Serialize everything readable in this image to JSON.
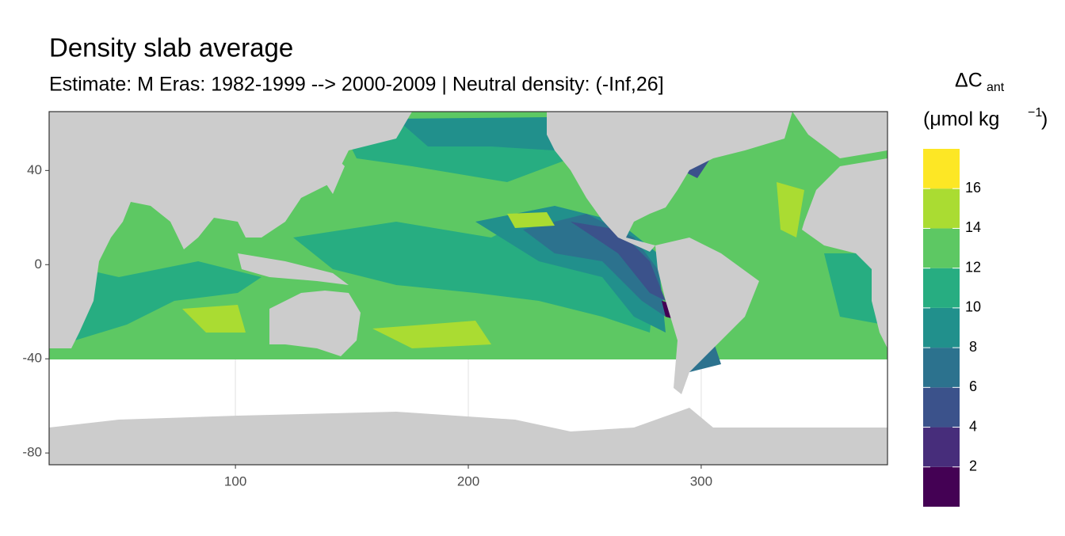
{
  "chart_data": {
    "type": "raster-map",
    "title": "Density slab average",
    "subtitle": "Estimate: M Eras: 1982-1999 --> 2000-2009 | Neutral density: (-Inf,26]",
    "xlim": [
      20,
      380
    ],
    "xticks": [
      100,
      200,
      300
    ],
    "ylim": [
      -85,
      65
    ],
    "yticks": [
      40,
      0,
      -40,
      -80
    ],
    "grid": true,
    "legend": {
      "title": "ΔC",
      "title_subscript": "ant",
      "unit": "(μmol kg",
      "unit_superscript": "−1",
      "unit_close": ")",
      "limits": [
        0,
        18
      ],
      "breaks": [
        2,
        4,
        6,
        8,
        10,
        12,
        14,
        16
      ],
      "colors": [
        "#440154",
        "#472D7B",
        "#3B528B",
        "#2C728E",
        "#21908C",
        "#27AD81",
        "#5DC863",
        "#AADC32",
        "#FDE725"
      ]
    }
  }
}
